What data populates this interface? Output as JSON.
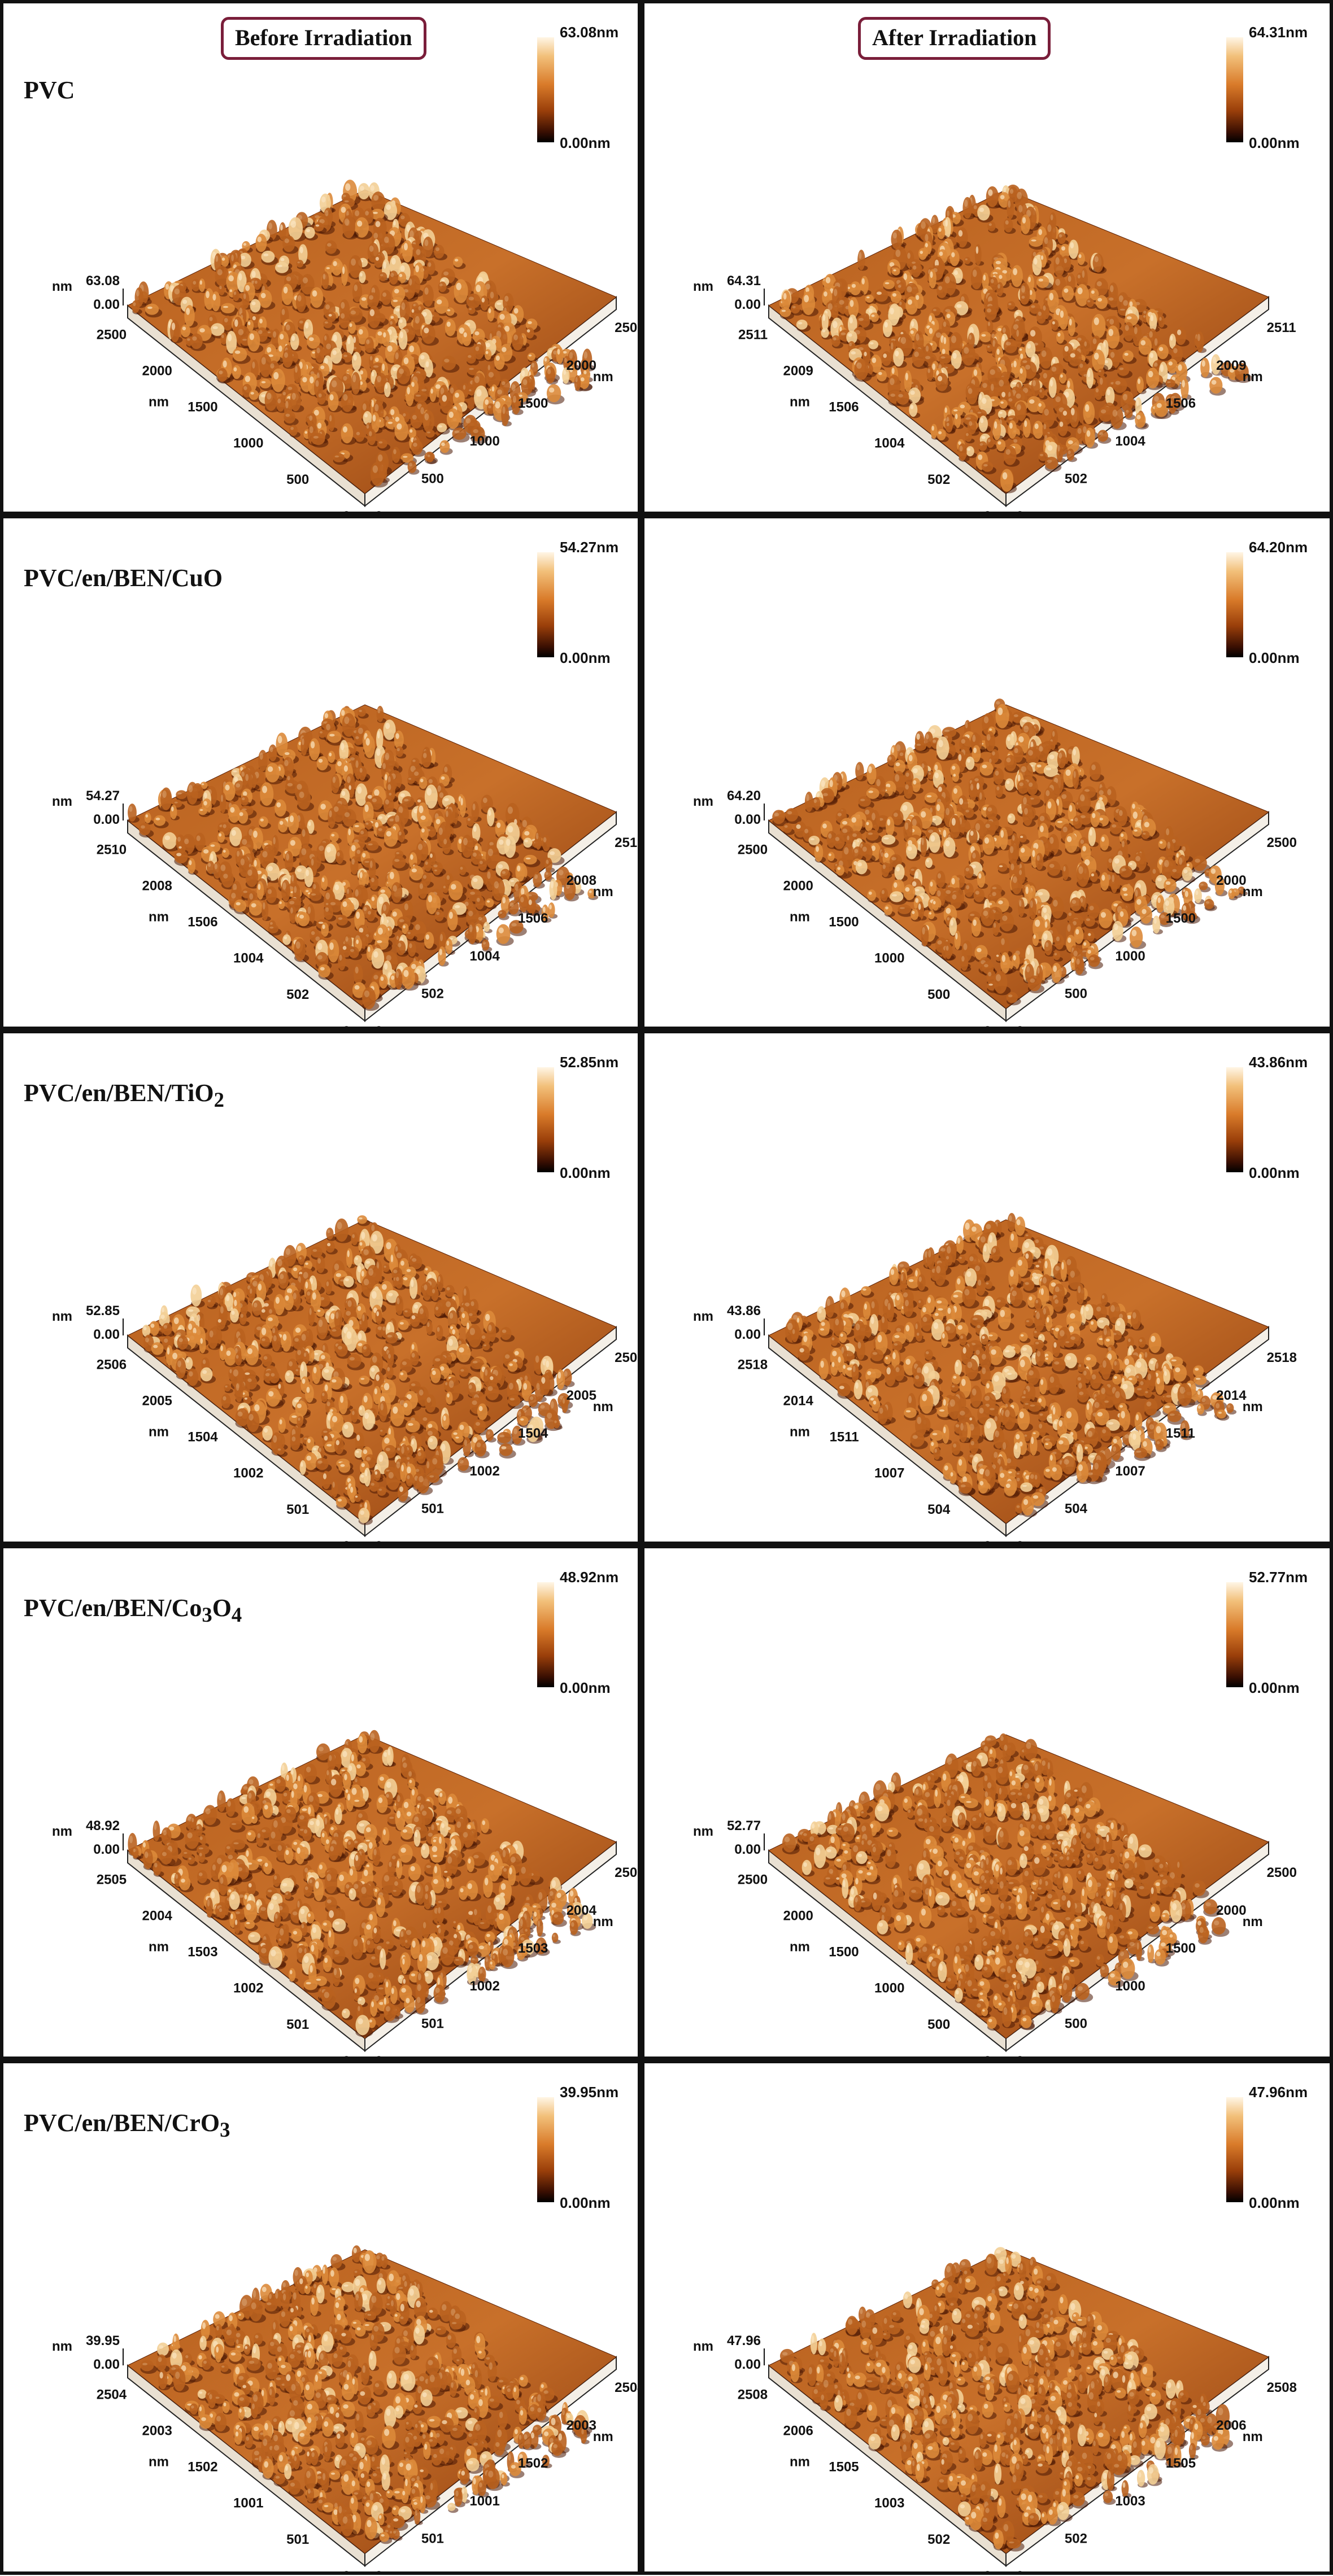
{
  "headers": {
    "before": "Before Irradiation",
    "after": "After Irradiation"
  },
  "rows": [
    {
      "label_html": "PVC",
      "before": {
        "zmax": "63.08nm",
        "zmin": "0.00nm",
        "zaxis_top": "63.08",
        "zaxis_bottom": "0.00",
        "zaxis_unit": "nm",
        "ticks": [
          "2500",
          "2000",
          "1500",
          "1000",
          "500"
        ],
        "zero": "0",
        "unit": "nm"
      },
      "after": {
        "zmax": "64.31nm",
        "zmin": "0.00nm",
        "zaxis_top": "64.31",
        "zaxis_bottom": "0.00",
        "zaxis_unit": "nm",
        "ticks": [
          "2511",
          "2009",
          "1506",
          "1004",
          "502"
        ],
        "zero": "0",
        "unit": "nm"
      }
    },
    {
      "label_html": "PVC/en/BEN/CuO",
      "before": {
        "zmax": "54.27nm",
        "zmin": "0.00nm",
        "zaxis_top": "54.27",
        "zaxis_bottom": "0.00",
        "zaxis_unit": "nm",
        "ticks": [
          "2510",
          "2008",
          "1506",
          "1004",
          "502"
        ],
        "zero": "0",
        "unit": "nm"
      },
      "after": {
        "zmax": "64.20nm",
        "zmin": "0.00nm",
        "zaxis_top": "64.20",
        "zaxis_bottom": "0.00",
        "zaxis_unit": "nm",
        "ticks": [
          "2500",
          "2000",
          "1500",
          "1000",
          "500"
        ],
        "zero": "0",
        "unit": "nm"
      }
    },
    {
      "label_html": "PVC/en/BEN/TiO<sub>2</sub>",
      "before": {
        "zmax": "52.85nm",
        "zmin": "0.00nm",
        "zaxis_top": "52.85",
        "zaxis_bottom": "0.00",
        "zaxis_unit": "nm",
        "ticks": [
          "2506",
          "2005",
          "1504",
          "1002",
          "501"
        ],
        "zero": "0",
        "unit": "nm"
      },
      "after": {
        "zmax": "43.86nm",
        "zmin": "0.00nm",
        "zaxis_top": "43.86",
        "zaxis_bottom": "0.00",
        "zaxis_unit": "nm",
        "ticks": [
          "2518",
          "2014",
          "1511",
          "1007",
          "504"
        ],
        "zero": "0",
        "unit": "nm"
      }
    },
    {
      "label_html": "PVC/en/BEN/Co<sub>3</sub>O<sub>4</sub>",
      "before": {
        "zmax": "48.92nm",
        "zmin": "0.00nm",
        "zaxis_top": "48.92",
        "zaxis_bottom": "0.00",
        "zaxis_unit": "nm",
        "ticks": [
          "2505",
          "2004",
          "1503",
          "1002",
          "501"
        ],
        "zero": "0",
        "unit": "nm"
      },
      "after": {
        "zmax": "52.77nm",
        "zmin": "0.00nm",
        "zaxis_top": "52.77",
        "zaxis_bottom": "0.00",
        "zaxis_unit": "nm",
        "ticks": [
          "2500",
          "2000",
          "1500",
          "1000",
          "500"
        ],
        "zero": "0",
        "unit": "nm"
      }
    },
    {
      "label_html": "PVC/en/BEN/CrO<sub>3</sub>",
      "before": {
        "zmax": "39.95nm",
        "zmin": "0.00nm",
        "zaxis_top": "39.95",
        "zaxis_bottom": "0.00",
        "zaxis_unit": "nm",
        "ticks": [
          "2504",
          "2003",
          "1502",
          "1001",
          "501"
        ],
        "zero": "0",
        "unit": "nm"
      },
      "after": {
        "zmax": "47.96nm",
        "zmin": "0.00nm",
        "zaxis_top": "47.96",
        "zaxis_bottom": "0.00",
        "zaxis_unit": "nm",
        "ticks": [
          "2508",
          "2006",
          "1505",
          "1003",
          "502"
        ],
        "zero": "0",
        "unit": "nm"
      }
    }
  ],
  "colors": {
    "surface_light": "#f7d9a6",
    "surface_mid": "#c8702a",
    "surface_dark": "#5a1f04",
    "border": "#111111",
    "badge_border": "#7a1e3a"
  }
}
